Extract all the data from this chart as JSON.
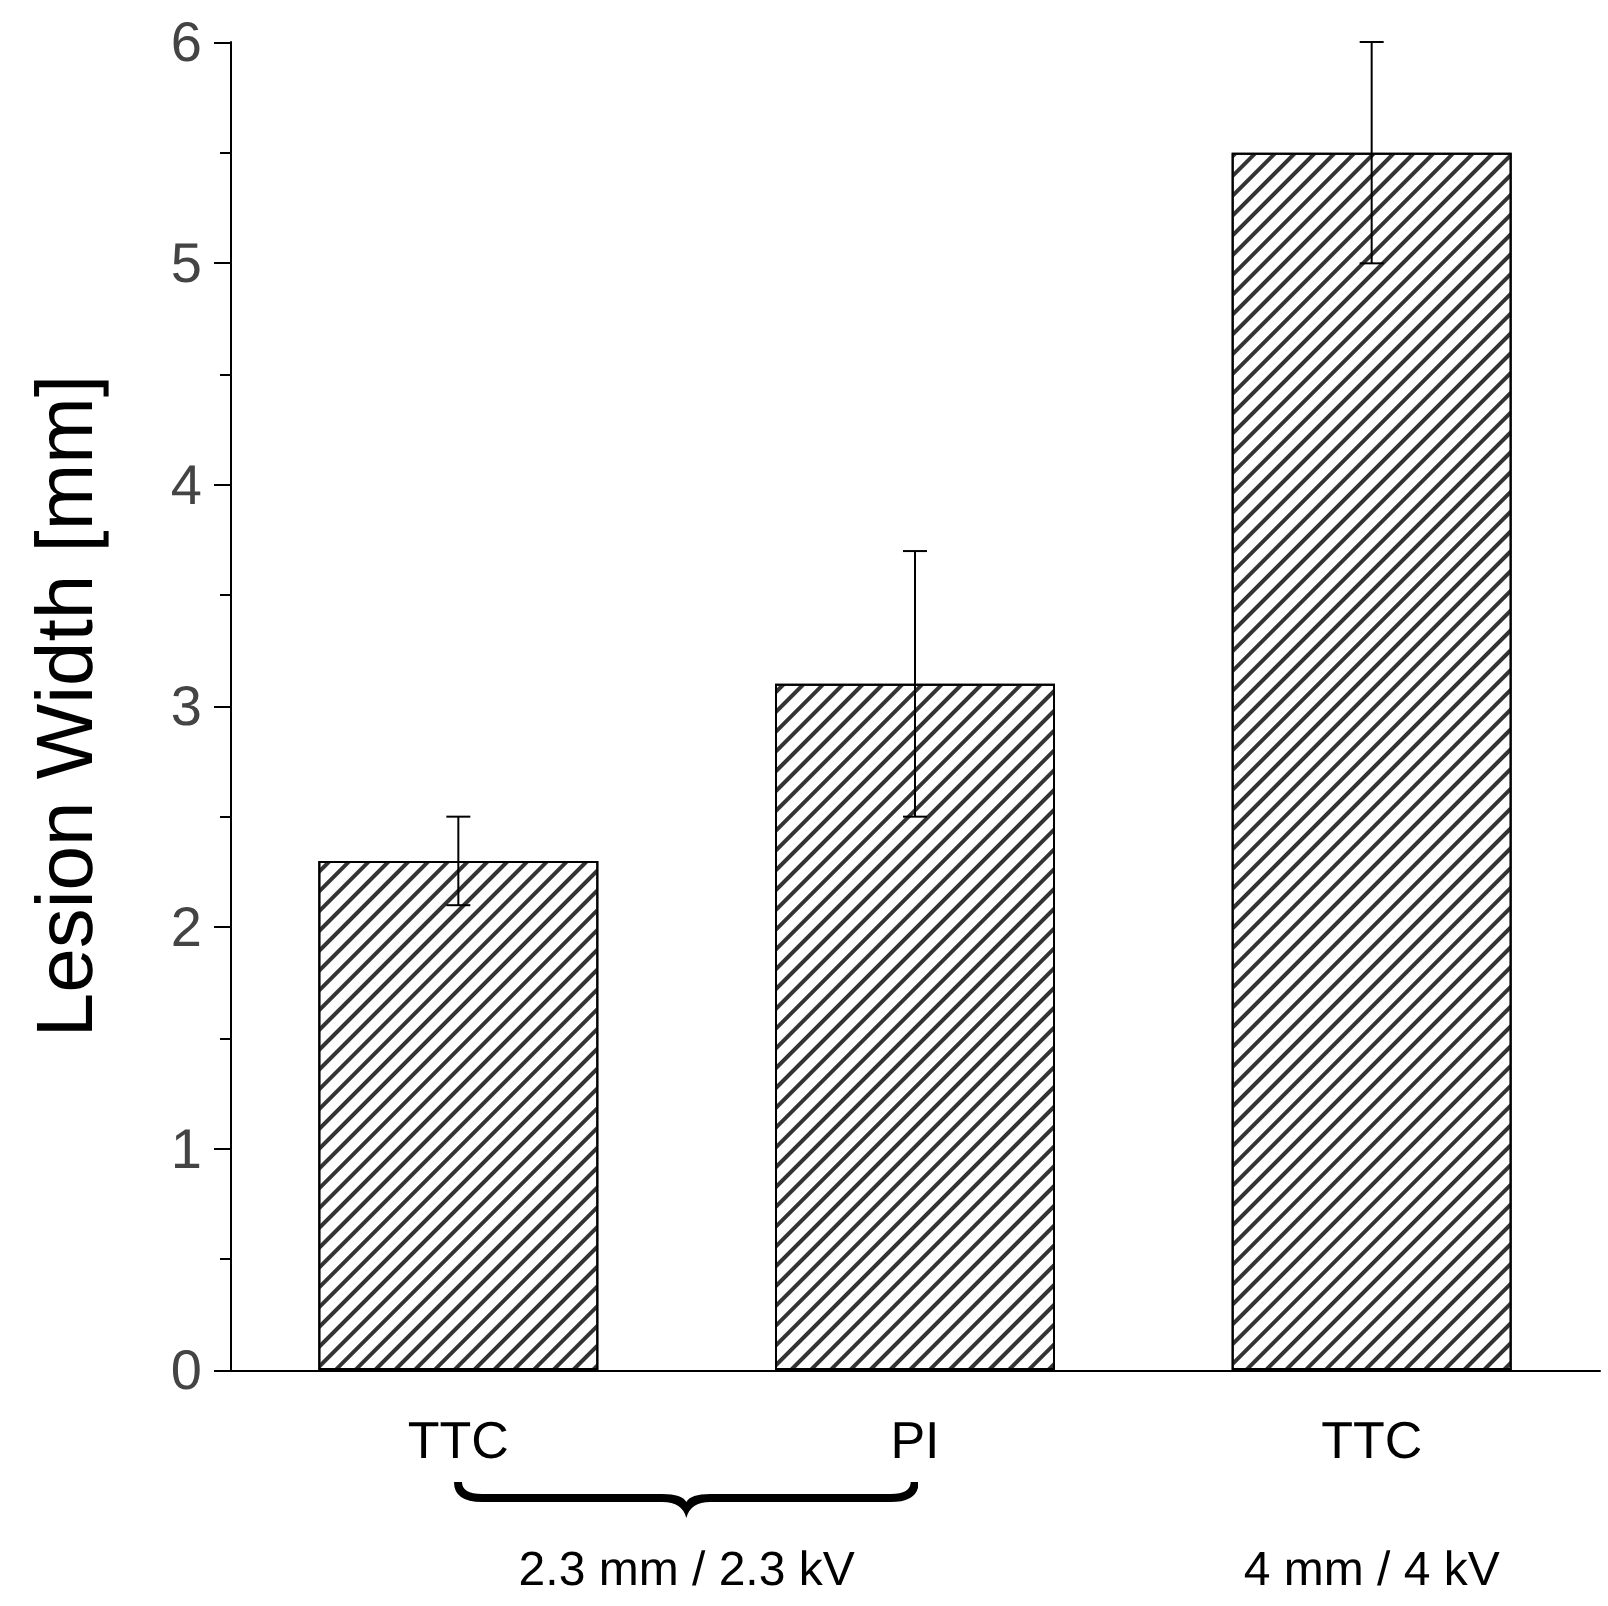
{
  "chart_data": {
    "type": "bar",
    "ylabel": "Lesion Width [mm]",
    "categories": [
      "TTC",
      "PI",
      "TTC"
    ],
    "values": [
      2.3,
      3.1,
      5.5
    ],
    "errors": [
      0.2,
      0.6,
      0.5
    ],
    "color": "#ffffff",
    "ylim": [
      0,
      6
    ],
    "yticks": [
      0,
      1,
      2,
      3,
      4,
      5,
      6
    ],
    "grid": false,
    "annotations": [
      "2.3 mm / 2.3 kV",
      "4 mm / 4 kV"
    ]
  }
}
